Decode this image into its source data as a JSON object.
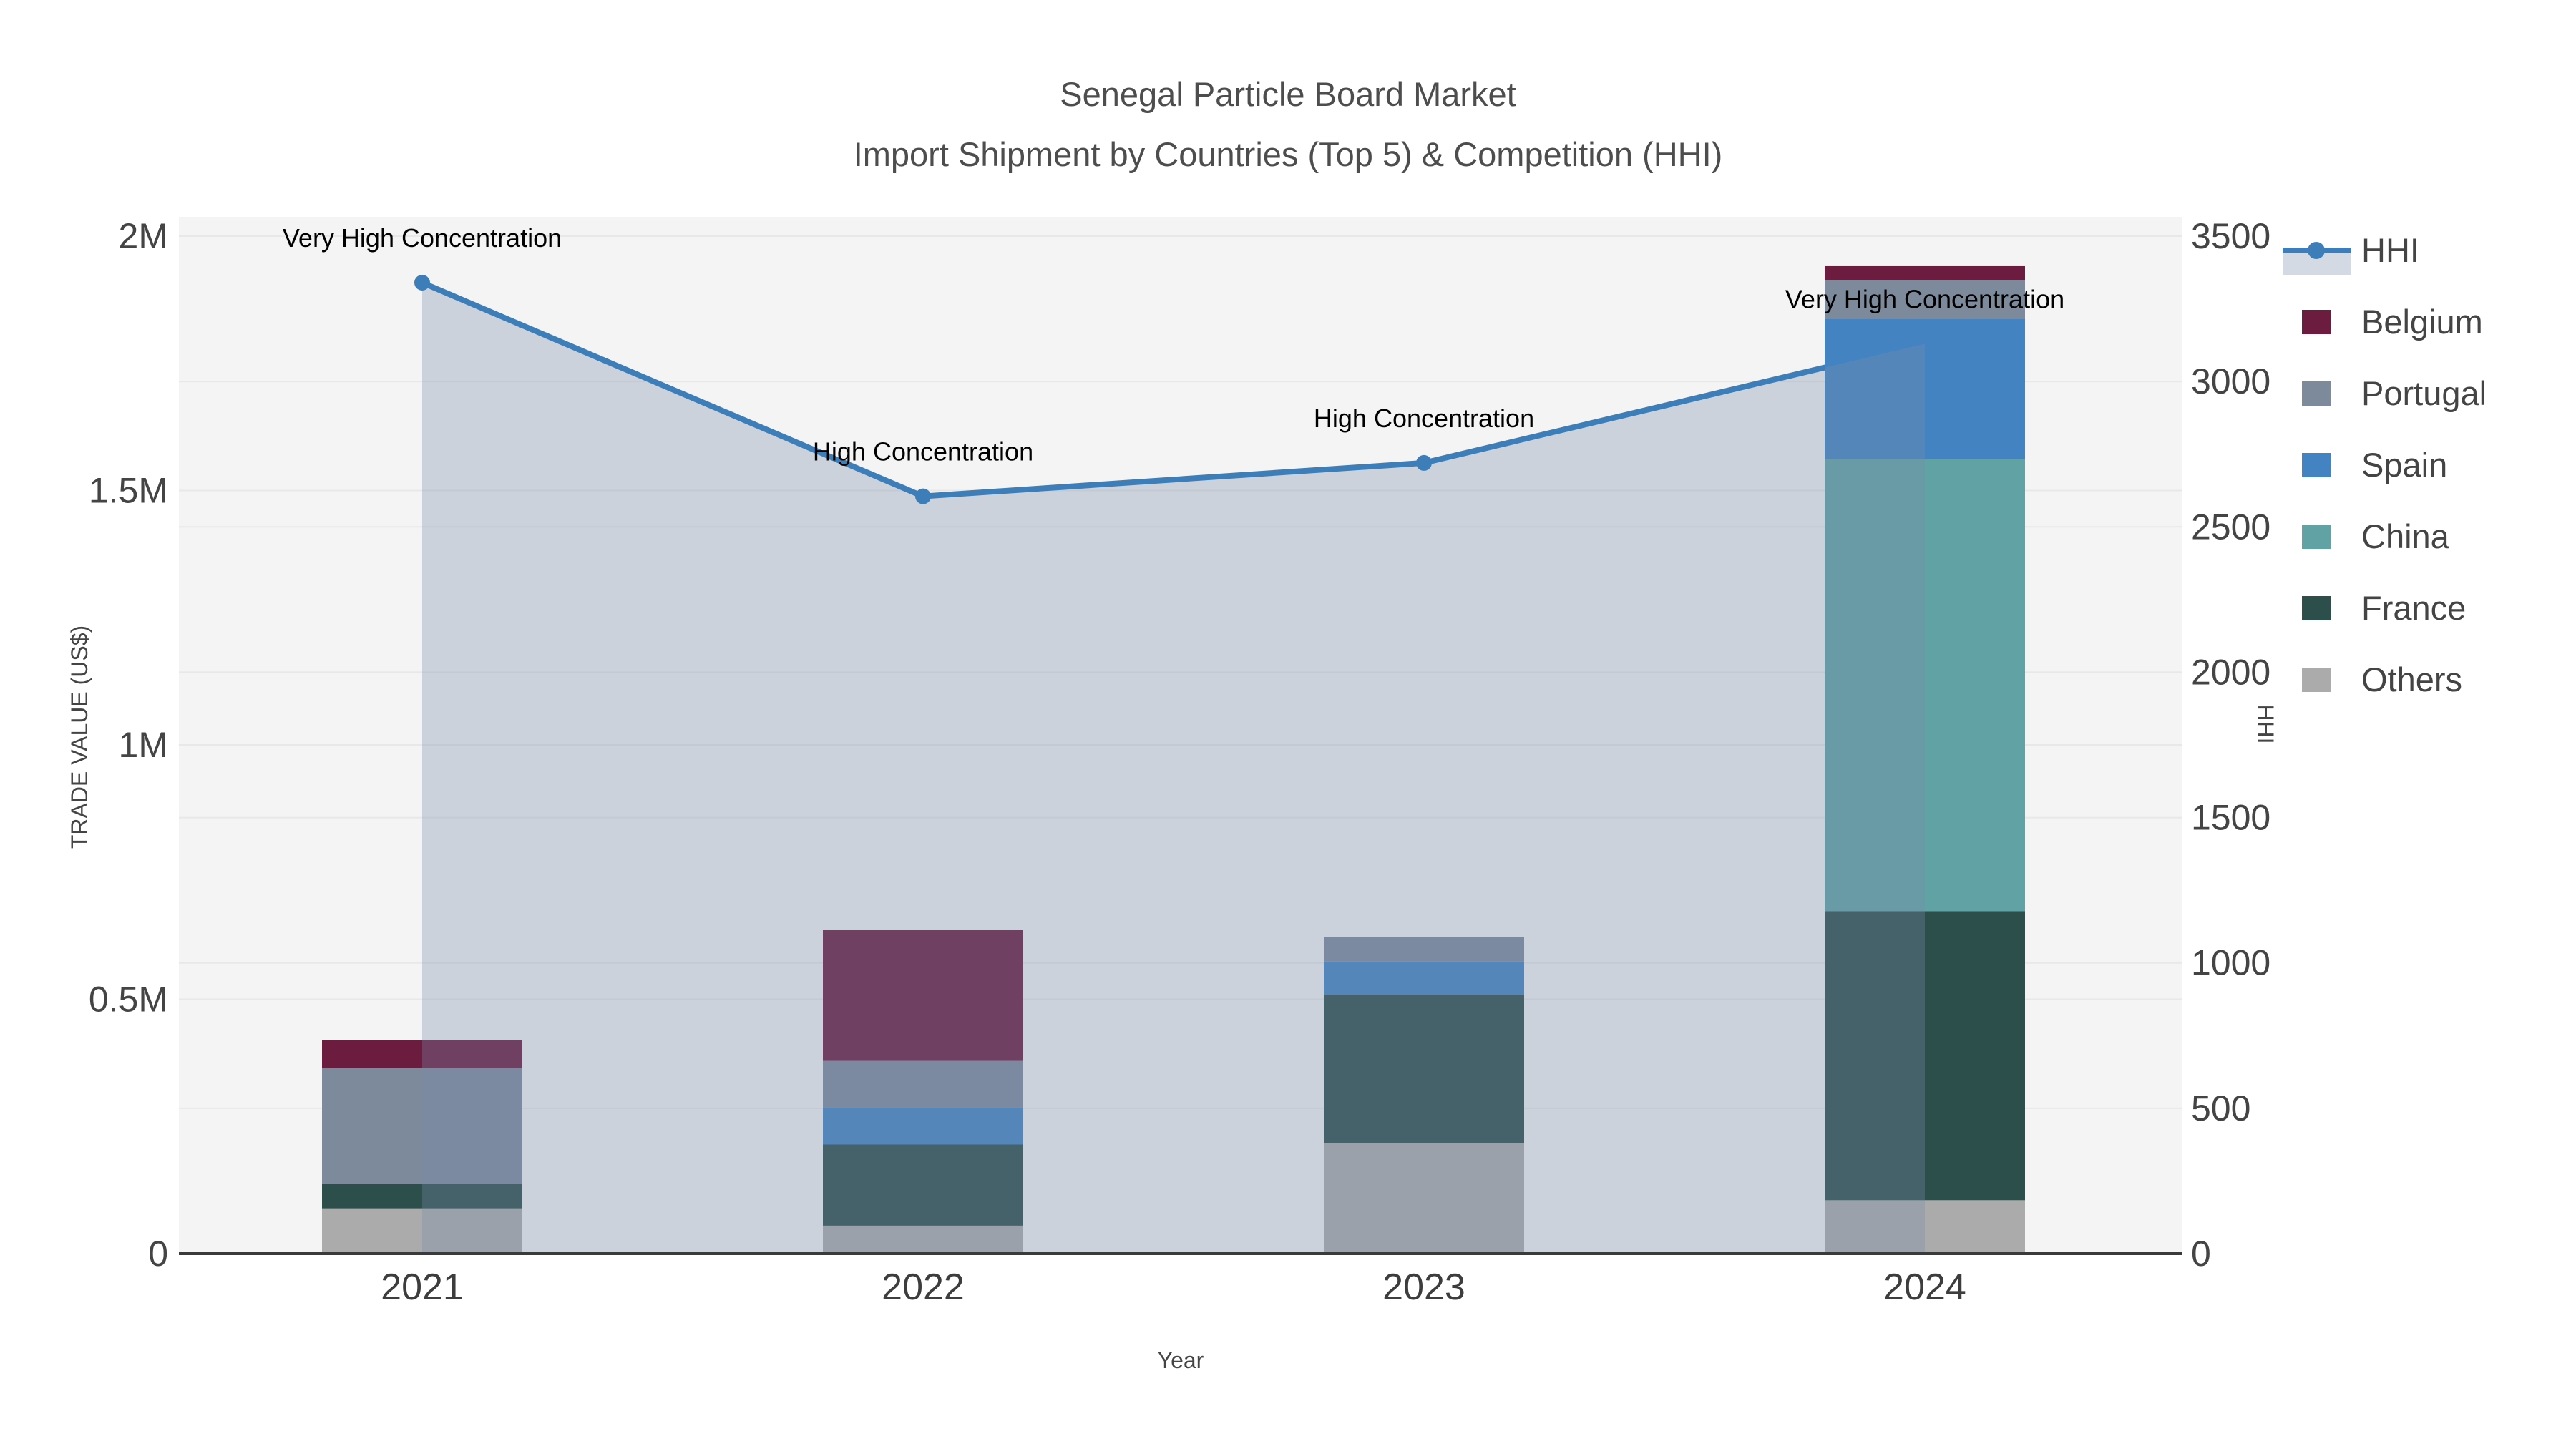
{
  "title": {
    "line1": "Senegal Particle Board Market",
    "line2": "Import Shipment by Countries (Top 5) & Competition (HHI)"
  },
  "chart_data": {
    "type": "bar+line",
    "categories": [
      "2021",
      "2022",
      "2023",
      "2024"
    ],
    "bar_series": [
      {
        "name": "Others",
        "color": "#ababab",
        "values": [
          89000,
          55000,
          218000,
          105000
        ]
      },
      {
        "name": "France",
        "color": "#2d4f4c",
        "values": [
          48000,
          160000,
          291000,
          568000
        ]
      },
      {
        "name": "China",
        "color": "#61a2a4",
        "values": [
          0,
          0,
          0,
          889000
        ]
      },
      {
        "name": "Spain",
        "color": "#4383c1",
        "values": [
          0,
          73000,
          65000,
          276000
        ]
      },
      {
        "name": "Portugal",
        "color": "#7c8a9c",
        "values": [
          228000,
          91000,
          48000,
          76000
        ]
      },
      {
        "name": "Belgium",
        "color": "#6b1c3f",
        "values": [
          55000,
          258000,
          0,
          27000
        ]
      }
    ],
    "line_series": {
      "name": "HHI",
      "color": "#3d7eb8",
      "fill_color": "rgba(120,140,170,0.32)",
      "legend_band_color": "#d4dae4",
      "values": [
        3340,
        2605,
        2720,
        3130
      ]
    },
    "annotations": [
      "Very High Concentration",
      "High Concentration",
      "High Concentration",
      "Very High Concentration"
    ],
    "y_left": {
      "label": "TRADE VALUE (US$)",
      "tick_labels": [
        "0",
        "0.5M",
        "1M",
        "1.5M",
        "2M"
      ],
      "tick_values": [
        0,
        500000,
        1000000,
        1500000,
        2000000
      ],
      "range": [
        0,
        2000000
      ]
    },
    "y_right": {
      "label": "HHI",
      "tick_labels": [
        "0",
        "500",
        "1000",
        "1500",
        "2000",
        "2500",
        "3000",
        "3500"
      ],
      "tick_values": [
        0,
        500,
        1000,
        1500,
        2000,
        2500,
        3000,
        3500
      ],
      "range": [
        0,
        3500
      ]
    },
    "x": {
      "label": "Year"
    },
    "legend": [
      "HHI",
      "Belgium",
      "Portugal",
      "Spain",
      "China",
      "France",
      "Others"
    ],
    "plot_background": "#f4f4f4",
    "grid_color": "#e8e8e8",
    "axis_line_color": "#3a3a3a",
    "legend_position": "right",
    "grid": true
  }
}
